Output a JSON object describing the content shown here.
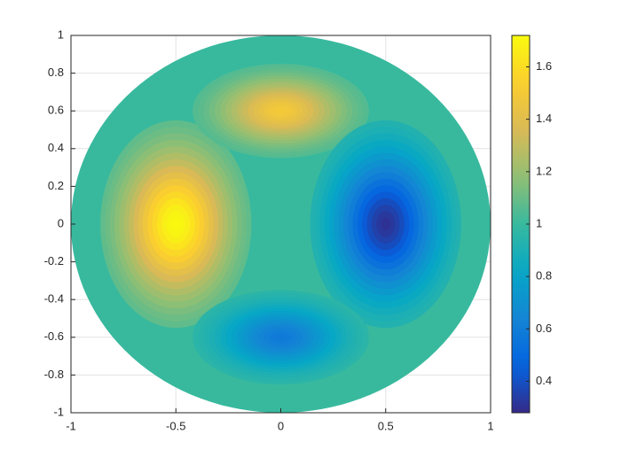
{
  "chart_data": {
    "type": "heatmap",
    "colormap": "parula",
    "x": [
      -0.5,
      0,
      0.5,
      0
    ],
    "y": [
      0,
      0.6,
      0,
      -0.6
    ],
    "values": [
      1.72,
      1.5,
      0.3,
      0.58
    ],
    "background_value": 1,
    "xlim": [
      -1,
      1
    ],
    "xticks": [
      -1,
      -0.5,
      0,
      0.5,
      1
    ],
    "ylim": [
      -1,
      1
    ],
    "yticks": [
      -1,
      -0.8,
      -0.6,
      -0.4,
      -0.2,
      0,
      0.2,
      0.4,
      0.6,
      0.8,
      1
    ],
    "clim": [
      0.28,
      1.72
    ],
    "cticks": [
      0.4,
      0.6,
      0.8,
      1,
      1.2,
      1.4,
      1.6
    ],
    "grid": true
  }
}
